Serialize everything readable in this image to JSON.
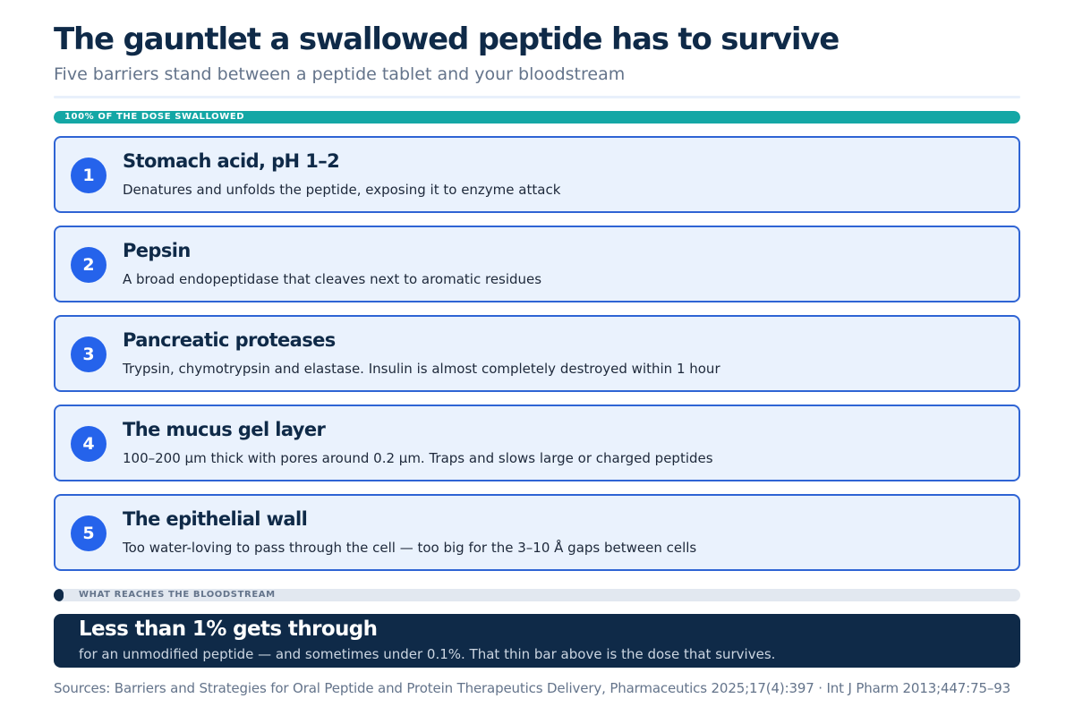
{
  "header": {
    "title": "The gauntlet a swallowed peptide has to survive",
    "subtitle": "Five barriers stand between a peptide tablet and your bloodstream"
  },
  "dose_bar": {
    "label": "100% OF THE DOSE SWALLOWED",
    "fill_percent": 100,
    "color": "#14a7a5"
  },
  "barriers": [
    {
      "number": "1",
      "title": "Stomach acid, pH 1–2",
      "description": "Denatures and unfolds the peptide, exposing it to enzyme attack"
    },
    {
      "number": "2",
      "title": "Pepsin",
      "description": "A broad endopeptidase that cleaves next to aromatic residues"
    },
    {
      "number": "3",
      "title": "Pancreatic proteases",
      "description": "Trypsin, chymotrypsin and elastase. Insulin is almost completely destroyed within 1 hour"
    },
    {
      "number": "4",
      "title": "The mucus gel layer",
      "description": "100–200 µm thick with pores around 0.2 µm. Traps and slows large or charged peptides"
    },
    {
      "number": "5",
      "title": "The epithelial wall",
      "description": "Too water-loving to pass through the cell — too big for the 3–10 Å gaps between cells"
    }
  ],
  "result_bar": {
    "label": "WHAT REACHES THE BLOODSTREAM",
    "fill_percent": 1,
    "color": "#0f2a48"
  },
  "callout": {
    "headline": "Less than 1% gets through",
    "text": "for an unmodified peptide — and sometimes under 0.1%. That thin bar above is the dose that survives."
  },
  "sources": "Sources: Barriers and Strategies for Oral Peptide and Protein Therapeutics Delivery, Pharmaceutics 2025;17(4):397 · Int J Pharm 2013;447:75–93"
}
